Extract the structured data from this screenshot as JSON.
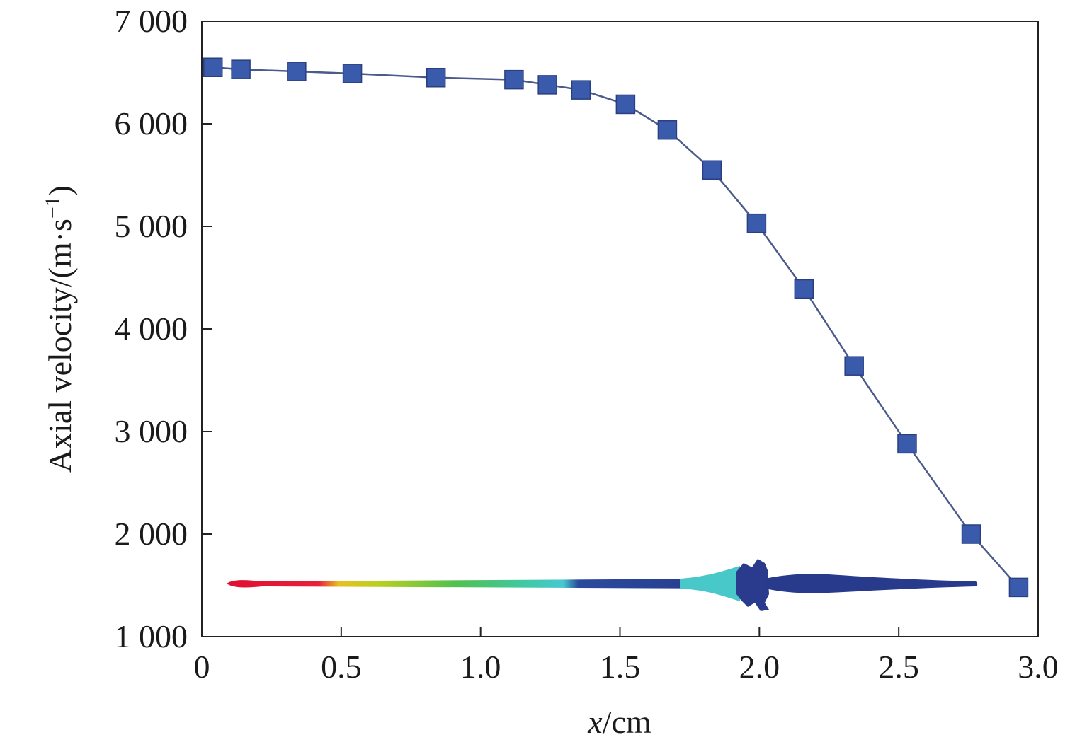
{
  "chart_data": {
    "type": "line",
    "title": "",
    "xlabel": {
      "var": "x",
      "unit": "/cm"
    },
    "ylabel": {
      "base": "Axial velocity/(m·s",
      "sup": "−1",
      "close": ")"
    },
    "xlim": [
      0,
      3.0
    ],
    "ylim": [
      1000,
      7000
    ],
    "x_ticks": [
      0,
      0.5,
      1.0,
      1.5,
      2.0,
      2.5,
      3.0
    ],
    "x_tick_labels": [
      "0",
      "0.5",
      "1.0",
      "1.5",
      "2.0",
      "2.5",
      "3.0"
    ],
    "y_ticks": [
      1000,
      2000,
      3000,
      4000,
      5000,
      6000,
      7000
    ],
    "y_tick_labels": [
      "1 000",
      "2 000",
      "3 000",
      "4 000",
      "5 000",
      "6 000",
      "7 000"
    ],
    "grid": false,
    "series": [
      {
        "name": "Axial velocity",
        "marker": "square",
        "color": "#3a5aac",
        "line_color": "#4a5a8a",
        "x": [
          0.04,
          0.14,
          0.34,
          0.54,
          0.84,
          1.12,
          1.24,
          1.36,
          1.52,
          1.67,
          1.83,
          1.99,
          2.16,
          2.34,
          2.53,
          2.76,
          2.93
        ],
        "y": [
          6550,
          6530,
          6510,
          6490,
          6450,
          6430,
          6380,
          6330,
          6190,
          5940,
          5550,
          5030,
          4390,
          3640,
          2880,
          2000,
          1480
        ]
      }
    ],
    "inset_image": {
      "description": "jet shape colored by velocity",
      "colors": [
        "#e8202a",
        "#f0e020",
        "#50c050",
        "#40c8c8",
        "#283a8c"
      ]
    }
  }
}
